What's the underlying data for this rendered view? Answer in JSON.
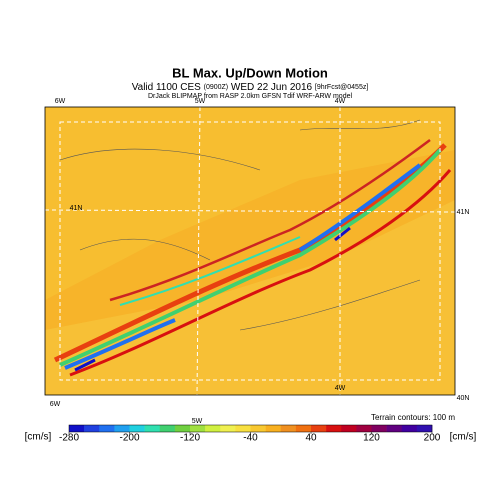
{
  "header": {
    "title": "BL Max. Up/Down Motion",
    "valid_parts": [
      "Valid 1100 CES",
      "(0900Z)",
      "WED 22 Jun 2016",
      "[9hrFcst@0455z]"
    ],
    "credit": "DrJack BLIPMAP from RASP 2.0km GFSN Tdif WRF-ARW model"
  },
  "map": {
    "lon_top": [
      "6W",
      "5W",
      "4W"
    ],
    "lon_bottom": [
      "6W",
      "5W",
      "4W"
    ],
    "lat_left": [
      "41N"
    ],
    "lat_right": [
      "41N",
      "40N"
    ],
    "note": "Terrain contours: 100 m"
  },
  "colorbar": {
    "units": [
      "[cm/s]",
      "[cm/s]"
    ],
    "lim": [
      -280,
      200
    ],
    "ticks": [
      -280,
      -200,
      -120,
      -40,
      40,
      120,
      200
    ],
    "colors": [
      "#1010c8",
      "#2040e0",
      "#2070f0",
      "#20a0f0",
      "#20d0e0",
      "#30e0b0",
      "#40d070",
      "#70d040",
      "#a0e040",
      "#d0f040",
      "#f0f050",
      "#f8e040",
      "#f8c830",
      "#f8b020",
      "#f09020",
      "#f07010",
      "#e84010",
      "#d81010",
      "#c00020",
      "#a00040",
      "#800060",
      "#600080",
      "#4000a0",
      "#3010b0"
    ]
  }
}
